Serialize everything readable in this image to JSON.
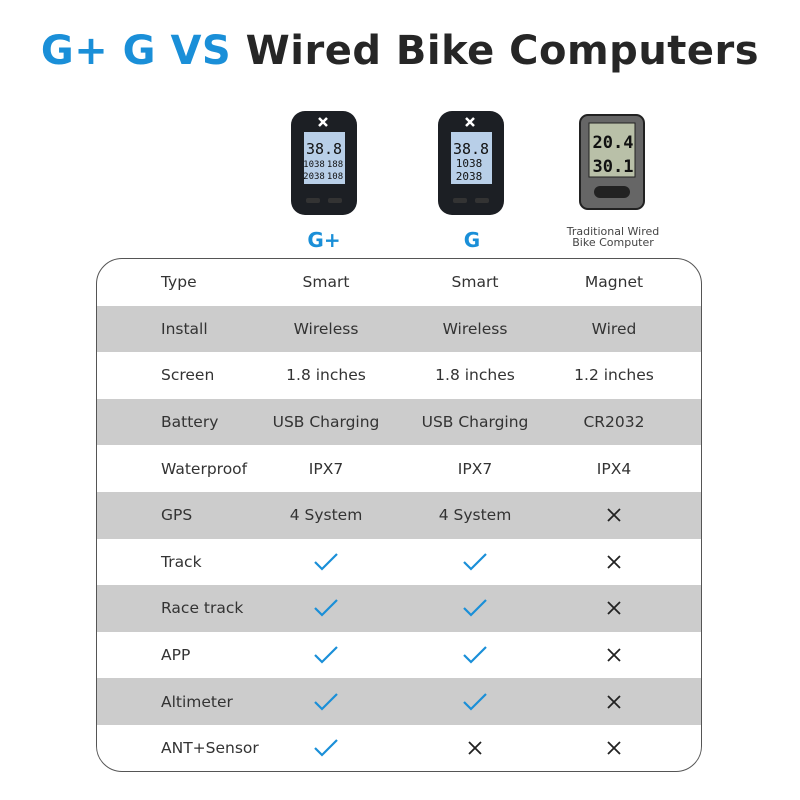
{
  "title": {
    "part1": "G+ G VS",
    "part2": "Wired Bike Computers"
  },
  "colors": {
    "accent": "#1a8fd8",
    "row_stripe": "#cccccc",
    "text": "#333333"
  },
  "products": [
    {
      "name": "G+",
      "display": [
        "38.8",
        "1038",
        "188",
        "2038",
        "108"
      ]
    },
    {
      "name": "G",
      "display": [
        "38.8",
        "1038",
        "2038"
      ]
    },
    {
      "name": "Traditional Wired Bike Computer",
      "line1": "Traditional Wired",
      "line2": "Bike Computer",
      "display": [
        "20.4",
        "30.1"
      ]
    }
  ],
  "rows": [
    {
      "label": "Type",
      "values": [
        "Smart",
        "Smart",
        "Magnet"
      ]
    },
    {
      "label": "Install",
      "values": [
        "Wireless",
        "Wireless",
        "Wired"
      ]
    },
    {
      "label": "Screen",
      "values": [
        "1.8 inches",
        "1.8 inches",
        "1.2 inches"
      ]
    },
    {
      "label": "Battery",
      "values": [
        "USB Charging",
        "USB Charging",
        "CR2032"
      ]
    },
    {
      "label": "Waterproof",
      "values": [
        "IPX7",
        "IPX7",
        "IPX4"
      ]
    },
    {
      "label": "GPS",
      "values": [
        "4 System",
        "4 System",
        "cross"
      ]
    },
    {
      "label": "Track",
      "values": [
        "check",
        "check",
        "cross"
      ]
    },
    {
      "label": "Race track",
      "values": [
        "check",
        "check",
        "cross"
      ]
    },
    {
      "label": "APP",
      "values": [
        "check",
        "check",
        "cross"
      ]
    },
    {
      "label": "Altimeter",
      "values": [
        "check",
        "check",
        "cross"
      ]
    },
    {
      "label": "ANT+Sensor",
      "values": [
        "check",
        "cross",
        "cross"
      ]
    }
  ]
}
